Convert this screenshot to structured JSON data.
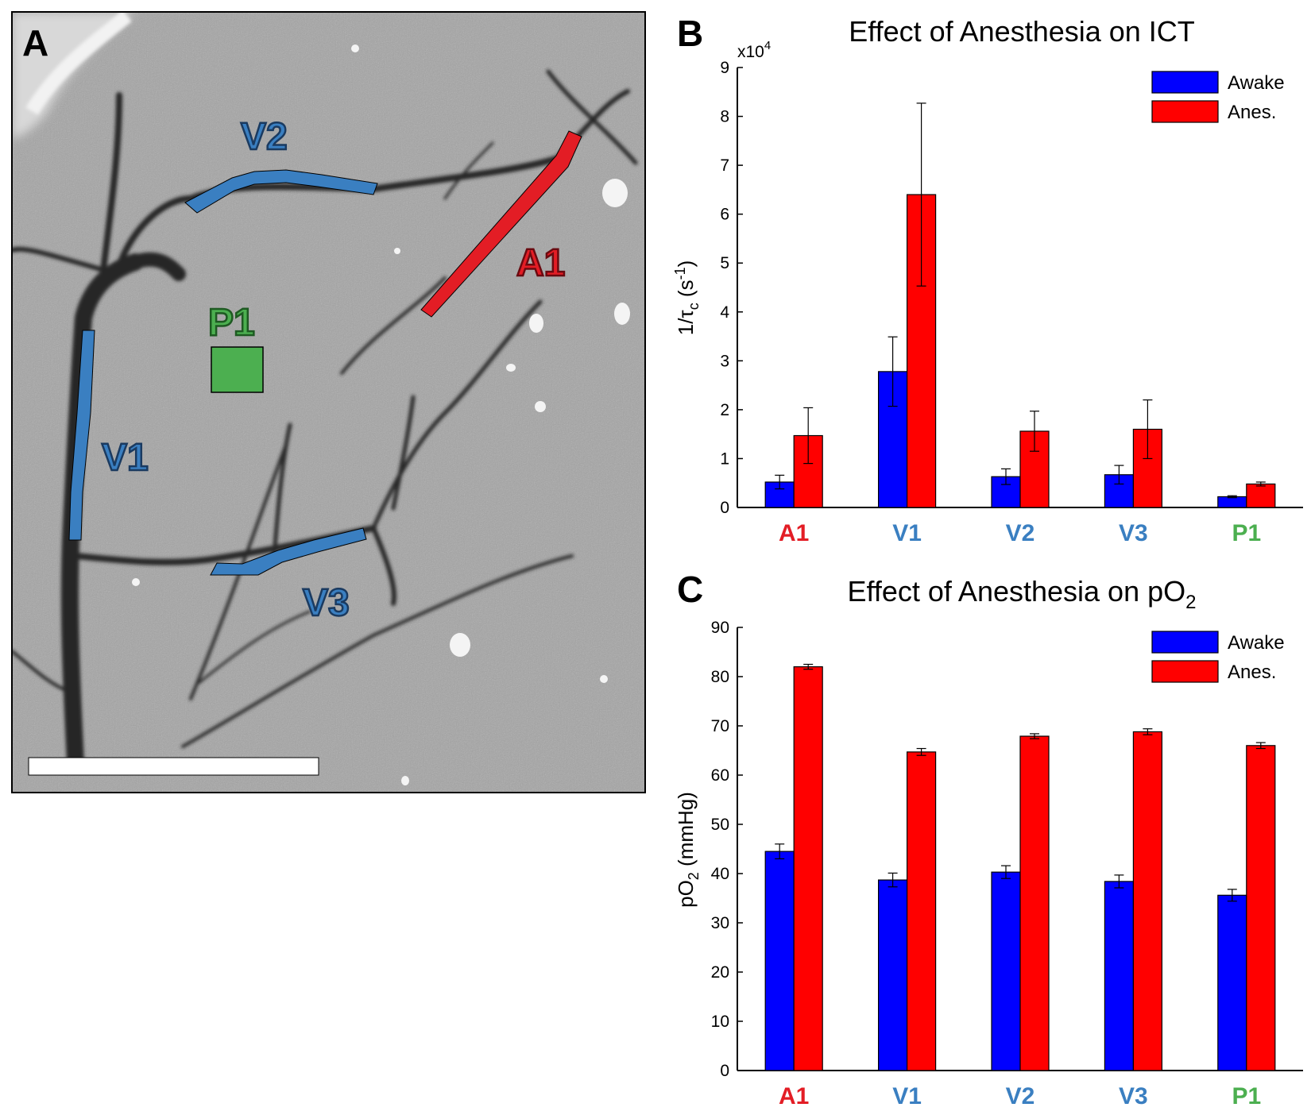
{
  "panels": {
    "a": {
      "letter": "A"
    },
    "b": {
      "letter": "B"
    },
    "c": {
      "letter": "C"
    }
  },
  "image_regions": [
    {
      "label": "V2",
      "color": "#3a7fc1"
    },
    {
      "label": "A1",
      "color": "#e31d25"
    },
    {
      "label": "P1",
      "color": "#4caf50"
    },
    {
      "label": "V1",
      "color": "#3a7fc1"
    },
    {
      "label": "V3",
      "color": "#3a7fc1"
    }
  ],
  "colors": {
    "awake": "#0000ff",
    "anes": "#ff0000"
  },
  "chart_data": [
    {
      "type": "bar",
      "title": "Effect of Anesthesia on ICT",
      "ylabel": {
        "main": "1/τ",
        "sub": "c",
        "rest": " (s",
        "sup": "-1",
        "end": ")"
      },
      "y_multiplier": {
        "base": "x10",
        "exp": "4"
      },
      "ylim": [
        0,
        9
      ],
      "yticks": [
        "0",
        "1",
        "2",
        "3",
        "4",
        "5",
        "6",
        "7",
        "8",
        "9"
      ],
      "categories": [
        "A1",
        "V1",
        "V2",
        "V3",
        "P1"
      ],
      "category_colors": [
        "#e31d25",
        "#3a7fc1",
        "#3a7fc1",
        "#3a7fc1",
        "#4caf50"
      ],
      "legend_position": "top-right",
      "series": [
        {
          "name": "Awake",
          "color": "#0000ff",
          "values": [
            0.52,
            2.78,
            0.63,
            0.67,
            0.22
          ],
          "errors": [
            0.14,
            0.71,
            0.16,
            0.19,
            0.02
          ]
        },
        {
          "name": "Anes.",
          "color": "#ff0000",
          "values": [
            1.47,
            6.4,
            1.56,
            1.6,
            0.48
          ],
          "errors": [
            0.57,
            1.87,
            0.41,
            0.6,
            0.04
          ]
        }
      ]
    },
    {
      "type": "bar",
      "title": {
        "main": "Effect of Anesthesia on pO",
        "sub": "2"
      },
      "ylabel": {
        "main": "pO",
        "sub": "2",
        "rest": " (mmHg)"
      },
      "ylim": [
        0,
        90
      ],
      "yticks": [
        "0",
        "10",
        "20",
        "30",
        "40",
        "50",
        "60",
        "70",
        "80",
        "90"
      ],
      "categories": [
        "A1",
        "V1",
        "V2",
        "V3",
        "P1"
      ],
      "category_colors": [
        "#e31d25",
        "#3a7fc1",
        "#3a7fc1",
        "#3a7fc1",
        "#4caf50"
      ],
      "legend_position": "top-right",
      "series": [
        {
          "name": "Awake",
          "color": "#0000ff",
          "values": [
            44.5,
            38.7,
            40.3,
            38.4,
            35.6
          ],
          "errors": [
            1.5,
            1.4,
            1.3,
            1.3,
            1.2
          ]
        },
        {
          "name": "Anes.",
          "color": "#ff0000",
          "values": [
            82.0,
            64.7,
            67.9,
            68.8,
            66.0
          ],
          "errors": [
            0.5,
            0.7,
            0.5,
            0.6,
            0.6
          ]
        }
      ]
    }
  ]
}
